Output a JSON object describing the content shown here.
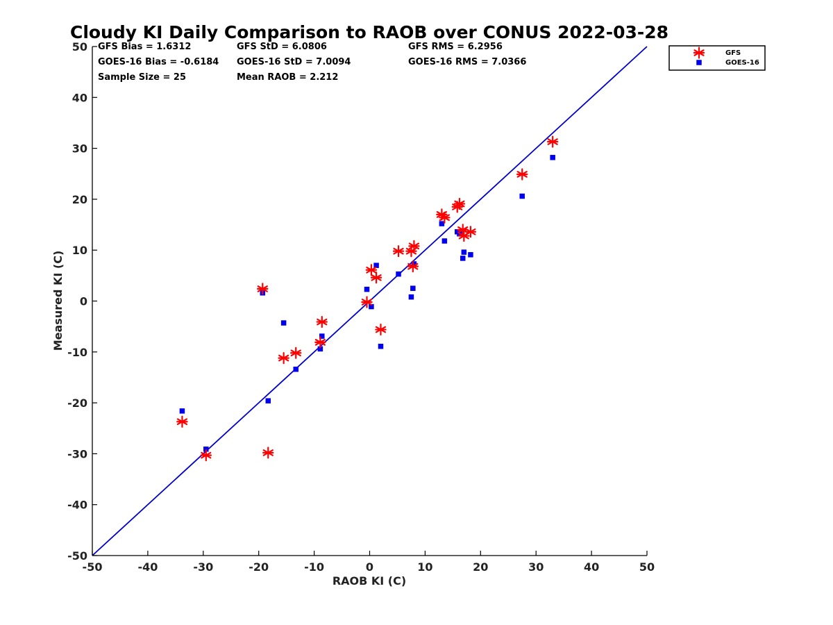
{
  "chart_data": {
    "type": "scatter",
    "title": "Cloudy KI Daily Comparison to RAOB over CONUS 2022-03-28",
    "xlabel": "RAOB KI (C)",
    "ylabel": "Measured KI (C)",
    "xlim": [
      -50,
      50
    ],
    "ylim": [
      -50,
      50
    ],
    "xticks": [
      -50,
      -40,
      -30,
      -20,
      -10,
      0,
      10,
      20,
      30,
      40,
      50
    ],
    "yticks": [
      -50,
      -40,
      -30,
      -20,
      -10,
      0,
      10,
      20,
      30,
      40,
      50
    ],
    "grid": false,
    "legend_position": "top-right, outside plot",
    "reference_line": {
      "x": [
        -50,
        50
      ],
      "y": [
        -50,
        50
      ],
      "color": "#0000cc"
    },
    "stats": [
      [
        "GFS Bias = 1.6312",
        "GFS StD = 6.0806",
        "GFS RMS = 6.2956"
      ],
      [
        "GOES-16 Bias = -0.6184",
        "GOES-16 StD = 7.0094",
        "GOES-16 RMS = 7.0366"
      ],
      [
        "Sample Size = 25",
        "Mean RAOB = 2.212"
      ]
    ],
    "series": [
      {
        "name": "GFS",
        "marker": "asterisk",
        "color": "#ff0000",
        "points": [
          [
            -33.8,
            -23.7
          ],
          [
            -29.5,
            -30.3
          ],
          [
            -19.3,
            2.4
          ],
          [
            -18.3,
            -29.8
          ],
          [
            -15.5,
            -11.2
          ],
          [
            -13.3,
            -10.2
          ],
          [
            -8.9,
            -8.1
          ],
          [
            -8.6,
            -4.1
          ],
          [
            -0.5,
            -0.2
          ],
          [
            0.3,
            6.1
          ],
          [
            1.2,
            4.6
          ],
          [
            2.0,
            -5.6
          ],
          [
            5.2,
            9.8
          ],
          [
            7.5,
            9.8
          ],
          [
            7.8,
            6.8
          ],
          [
            8.0,
            10.8
          ],
          [
            13.0,
            17.0
          ],
          [
            13.5,
            16.4
          ],
          [
            15.8,
            18.5
          ],
          [
            16.2,
            19.1
          ],
          [
            16.8,
            14.0
          ],
          [
            17.0,
            12.8
          ],
          [
            18.2,
            13.6
          ],
          [
            27.5,
            24.9
          ],
          [
            33.0,
            31.3
          ]
        ]
      },
      {
        "name": "GOES-16",
        "marker": "square",
        "color": "#0000ee",
        "points": [
          [
            -33.8,
            -21.6
          ],
          [
            -29.5,
            -29.1
          ],
          [
            -19.3,
            1.6
          ],
          [
            -18.3,
            -19.6
          ],
          [
            -15.5,
            -4.3
          ],
          [
            -13.3,
            -13.4
          ],
          [
            -8.9,
            -9.4
          ],
          [
            -8.6,
            -6.9
          ],
          [
            -0.5,
            2.3
          ],
          [
            0.3,
            -1.1
          ],
          [
            1.2,
            7.0
          ],
          [
            2.0,
            -8.9
          ],
          [
            5.2,
            5.3
          ],
          [
            7.5,
            0.8
          ],
          [
            7.8,
            2.5
          ],
          [
            8.0,
            7.3
          ],
          [
            13.0,
            15.2
          ],
          [
            13.5,
            11.8
          ],
          [
            15.8,
            13.6
          ],
          [
            16.2,
            13.2
          ],
          [
            16.8,
            8.4
          ],
          [
            17.0,
            9.6
          ],
          [
            18.2,
            9.1
          ],
          [
            27.5,
            20.6
          ],
          [
            33.0,
            28.2
          ]
        ]
      }
    ]
  }
}
